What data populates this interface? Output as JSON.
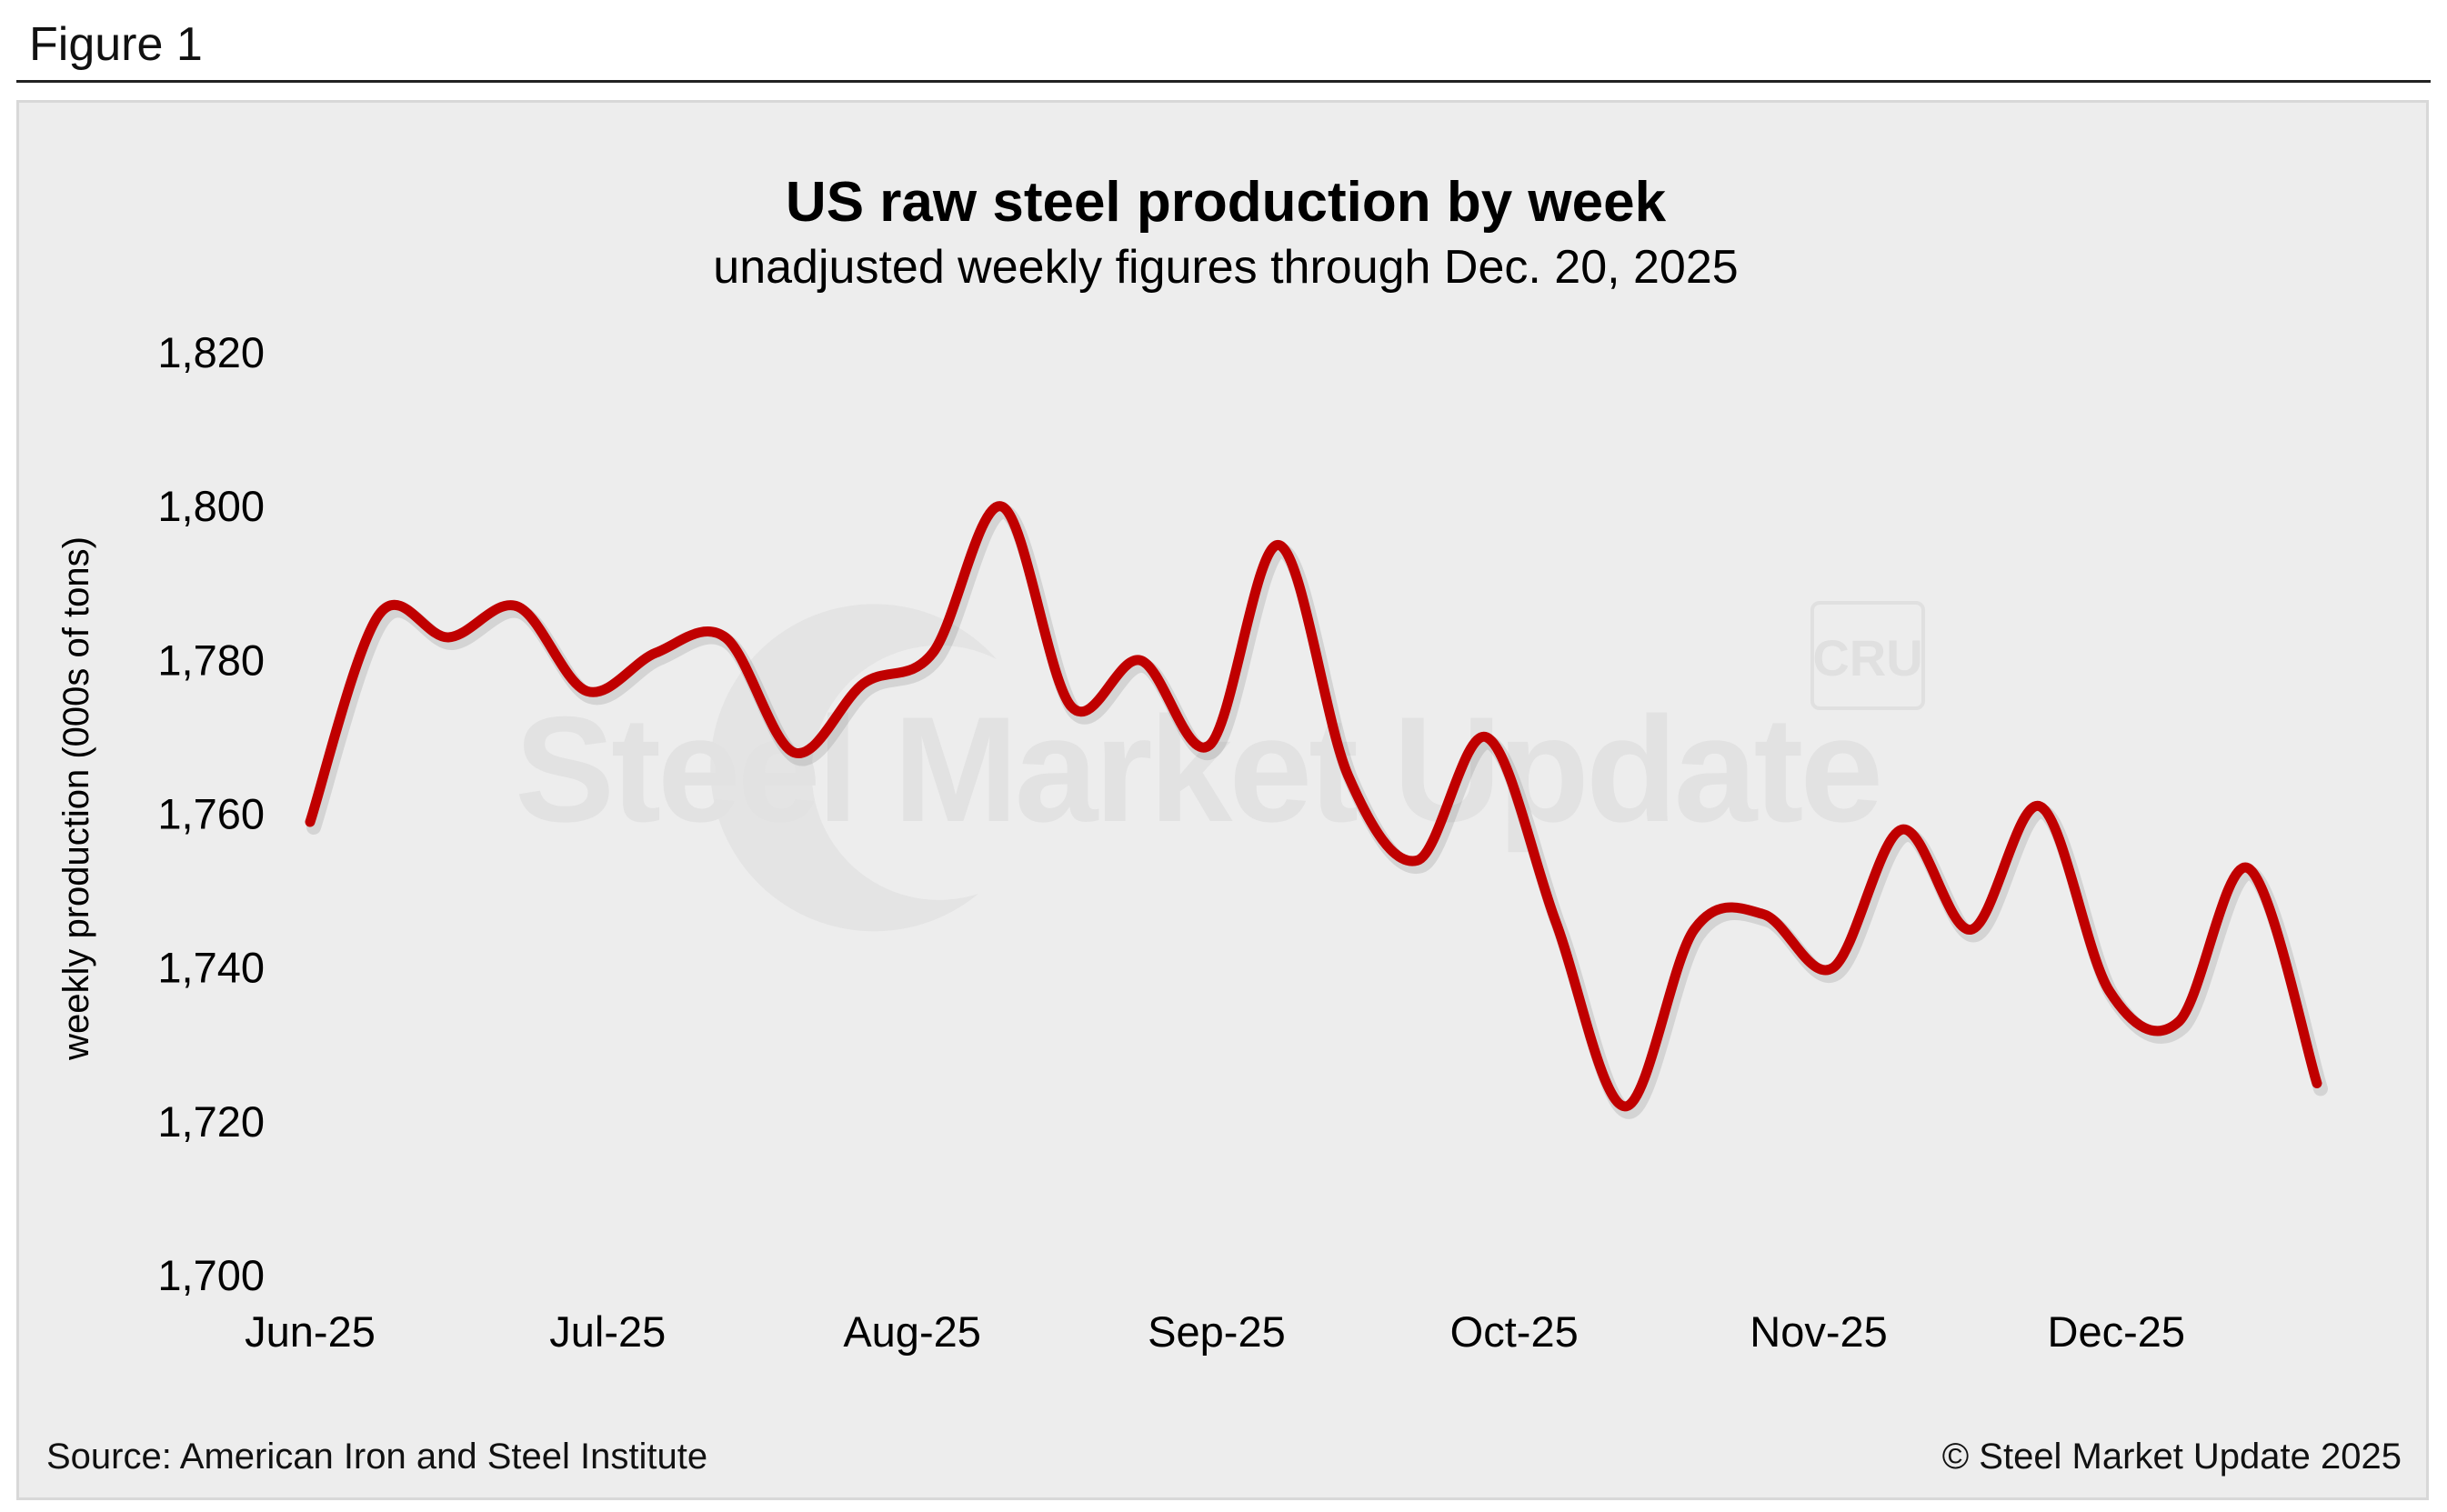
{
  "figure_label": "Figure 1",
  "source": "Source: American Iron and Steel Institute",
  "copyright": "© Steel Market Update 2025",
  "watermark": {
    "brand": "Steel Market Update",
    "badge": "CRU"
  },
  "colors": {
    "line": "#c00000",
    "panel": "#ededed",
    "text": "#000000"
  },
  "chart_data": {
    "type": "line",
    "title": "US raw steel production by week",
    "subtitle": "unadjusted weekly figures through Dec. 20, 2025",
    "xlabel": "",
    "ylabel": "weekly production (000s of tons)",
    "ylim": [
      1700,
      1820
    ],
    "yticks": [
      1700,
      1720,
      1740,
      1760,
      1780,
      1800,
      1820
    ],
    "ytick_labels": [
      "1,700",
      "1,720",
      "1,740",
      "1,760",
      "1,780",
      "1,800",
      "1,820"
    ],
    "xticks": [
      {
        "label": "Jun-25",
        "week": 0
      },
      {
        "label": "Jul-25",
        "week": 4.3
      },
      {
        "label": "Aug-25",
        "week": 8.7
      },
      {
        "label": "Sep-25",
        "week": 13.1
      },
      {
        "label": "Oct-25",
        "week": 17.4
      },
      {
        "label": "Nov-25",
        "week": 21.8
      },
      {
        "label": "Dec-25",
        "week": 26.1
      }
    ],
    "grid": false,
    "series": [
      {
        "name": "weekly production",
        "x": [
          0,
          1,
          2,
          3,
          4,
          5,
          6,
          7,
          8,
          9,
          10,
          11,
          12,
          13,
          14,
          15,
          16,
          17,
          18,
          19,
          20,
          21,
          22,
          23,
          24,
          25,
          26,
          27,
          28,
          29
        ],
        "values": [
          1759,
          1786,
          1783,
          1787,
          1776,
          1781,
          1783,
          1768,
          1777,
          1781,
          1800,
          1774,
          1780,
          1769,
          1795,
          1765,
          1754,
          1770,
          1746,
          1722,
          1745,
          1747,
          1740,
          1758,
          1745,
          1761,
          1737,
          1733,
          1753,
          1725
        ]
      }
    ]
  }
}
